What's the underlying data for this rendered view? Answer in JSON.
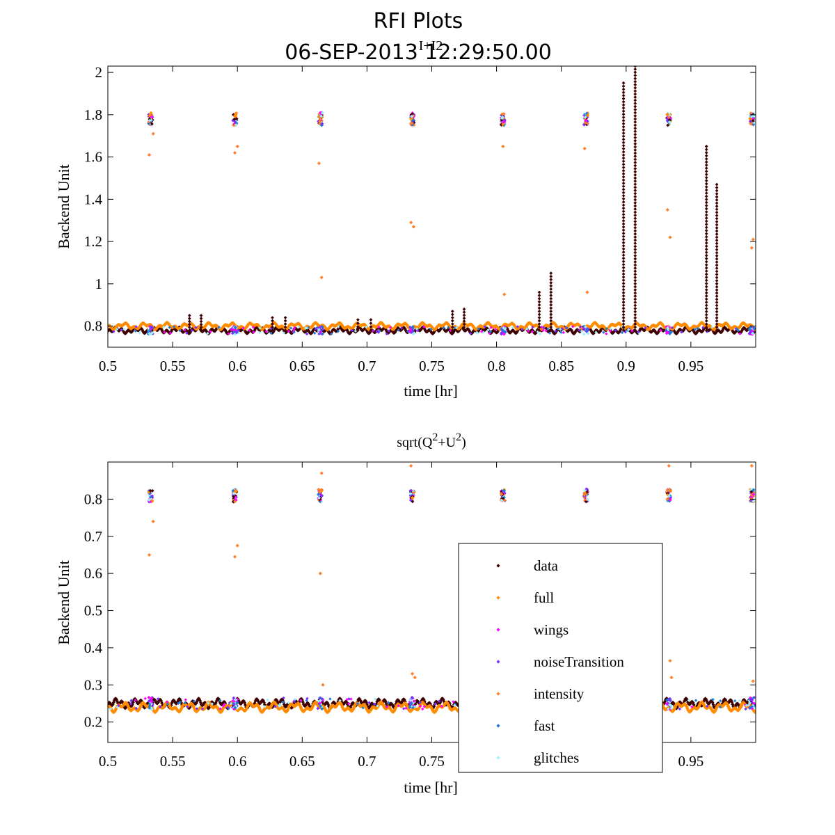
{
  "figure": {
    "title_line1": "RFI Plots",
    "title_line2": "06-SEP-2013 12:29:50.00"
  },
  "chart_data": [
    {
      "type": "scatter",
      "title": "I+I2",
      "xlabel": "time [hr]",
      "ylabel": "Backend Unit",
      "xlim": [
        0.5,
        1.0
      ],
      "ylim": [
        0.7,
        2.03
      ],
      "xticks": [
        "0.5",
        "0.55",
        "0.6",
        "0.65",
        "0.7",
        "0.75",
        "0.8",
        "0.85",
        "0.9",
        "0.95"
      ],
      "yticks": [
        "0.8",
        "1",
        "1.2",
        "1.4",
        "1.6",
        "1.8",
        "2"
      ],
      "baseline": {
        "data": 0.78,
        "full": 0.8
      },
      "noise_bursts_x": [
        0.533,
        0.598,
        0.664,
        0.735,
        0.805,
        0.869,
        0.933,
        0.997
      ],
      "noise_level": 1.78,
      "data_spikes": [
        {
          "x": 0.563,
          "peak": 0.85
        },
        {
          "x": 0.572,
          "peak": 0.85
        },
        {
          "x": 0.627,
          "peak": 0.84
        },
        {
          "x": 0.637,
          "peak": 0.84
        },
        {
          "x": 0.693,
          "peak": 0.83
        },
        {
          "x": 0.703,
          "peak": 0.83
        },
        {
          "x": 0.766,
          "peak": 0.87
        },
        {
          "x": 0.775,
          "peak": 0.88
        },
        {
          "x": 0.833,
          "peak": 0.96
        },
        {
          "x": 0.842,
          "peak": 1.05
        },
        {
          "x": 0.898,
          "peak": 1.95
        },
        {
          "x": 0.907,
          "peak": 2.03
        },
        {
          "x": 0.962,
          "peak": 1.65
        },
        {
          "x": 0.97,
          "peak": 1.47
        }
      ],
      "intensity_outliers": [
        {
          "x": 0.532,
          "y": 1.61
        },
        {
          "x": 0.535,
          "y": 1.71
        },
        {
          "x": 0.598,
          "y": 1.62
        },
        {
          "x": 0.6,
          "y": 1.65
        },
        {
          "x": 0.663,
          "y": 1.57
        },
        {
          "x": 0.665,
          "y": 1.03
        },
        {
          "x": 0.734,
          "y": 1.29
        },
        {
          "x": 0.736,
          "y": 1.27
        },
        {
          "x": 0.805,
          "y": 1.65
        },
        {
          "x": 0.806,
          "y": 0.95
        },
        {
          "x": 0.868,
          "y": 1.64
        },
        {
          "x": 0.87,
          "y": 0.96
        },
        {
          "x": 0.932,
          "y": 1.35
        },
        {
          "x": 0.934,
          "y": 1.22
        },
        {
          "x": 0.997,
          "y": 1.17
        },
        {
          "x": 0.998,
          "y": 1.21
        }
      ]
    },
    {
      "type": "scatter",
      "title": "sqrt(Q2+U2)",
      "xlabel": "time [hr]",
      "ylabel": "Backend Unit",
      "xlim": [
        0.5,
        1.0
      ],
      "ylim": [
        0.145,
        0.9
      ],
      "xticks": [
        "0.5",
        "0.55",
        "0.6",
        "0.65",
        "0.7",
        "0.75",
        "0.8",
        "0.85",
        "0.9",
        "0.95"
      ],
      "yticks": [
        "0.2",
        "0.3",
        "0.4",
        "0.5",
        "0.6",
        "0.7",
        "0.8"
      ],
      "baseline": {
        "data": 0.25,
        "full": 0.24
      },
      "noise_bursts_x": [
        0.533,
        0.598,
        0.664,
        0.735,
        0.805,
        0.869,
        0.933,
        0.997
      ],
      "noise_level": 0.81,
      "intensity_outliers": [
        {
          "x": 0.532,
          "y": 0.65
        },
        {
          "x": 0.535,
          "y": 0.74
        },
        {
          "x": 0.598,
          "y": 0.645
        },
        {
          "x": 0.6,
          "y": 0.675
        },
        {
          "x": 0.664,
          "y": 0.6
        },
        {
          "x": 0.665,
          "y": 0.87
        },
        {
          "x": 0.734,
          "y": 0.89
        },
        {
          "x": 0.735,
          "y": 0.33
        },
        {
          "x": 0.737,
          "y": 0.32
        },
        {
          "x": 0.933,
          "y": 0.89
        },
        {
          "x": 0.934,
          "y": 0.365
        },
        {
          "x": 0.935,
          "y": 0.32
        },
        {
          "x": 0.997,
          "y": 0.89
        },
        {
          "x": 0.998,
          "y": 0.31
        },
        {
          "x": 0.666,
          "y": 0.3
        }
      ]
    }
  ],
  "legend": {
    "placement": "lower-right of bottom panel",
    "entries": [
      {
        "label": "data",
        "color": "#3d0000"
      },
      {
        "label": "full",
        "color": "#ff8c00"
      },
      {
        "label": "wings",
        "color": "#ff00ff"
      },
      {
        "label": "noiseTransition",
        "color": "#7b2cff"
      },
      {
        "label": "intensity",
        "color": "#ff7f2a"
      },
      {
        "label": "fast",
        "color": "#1f77d4"
      },
      {
        "label": "glitches",
        "color": "#9ff0ff"
      }
    ]
  }
}
